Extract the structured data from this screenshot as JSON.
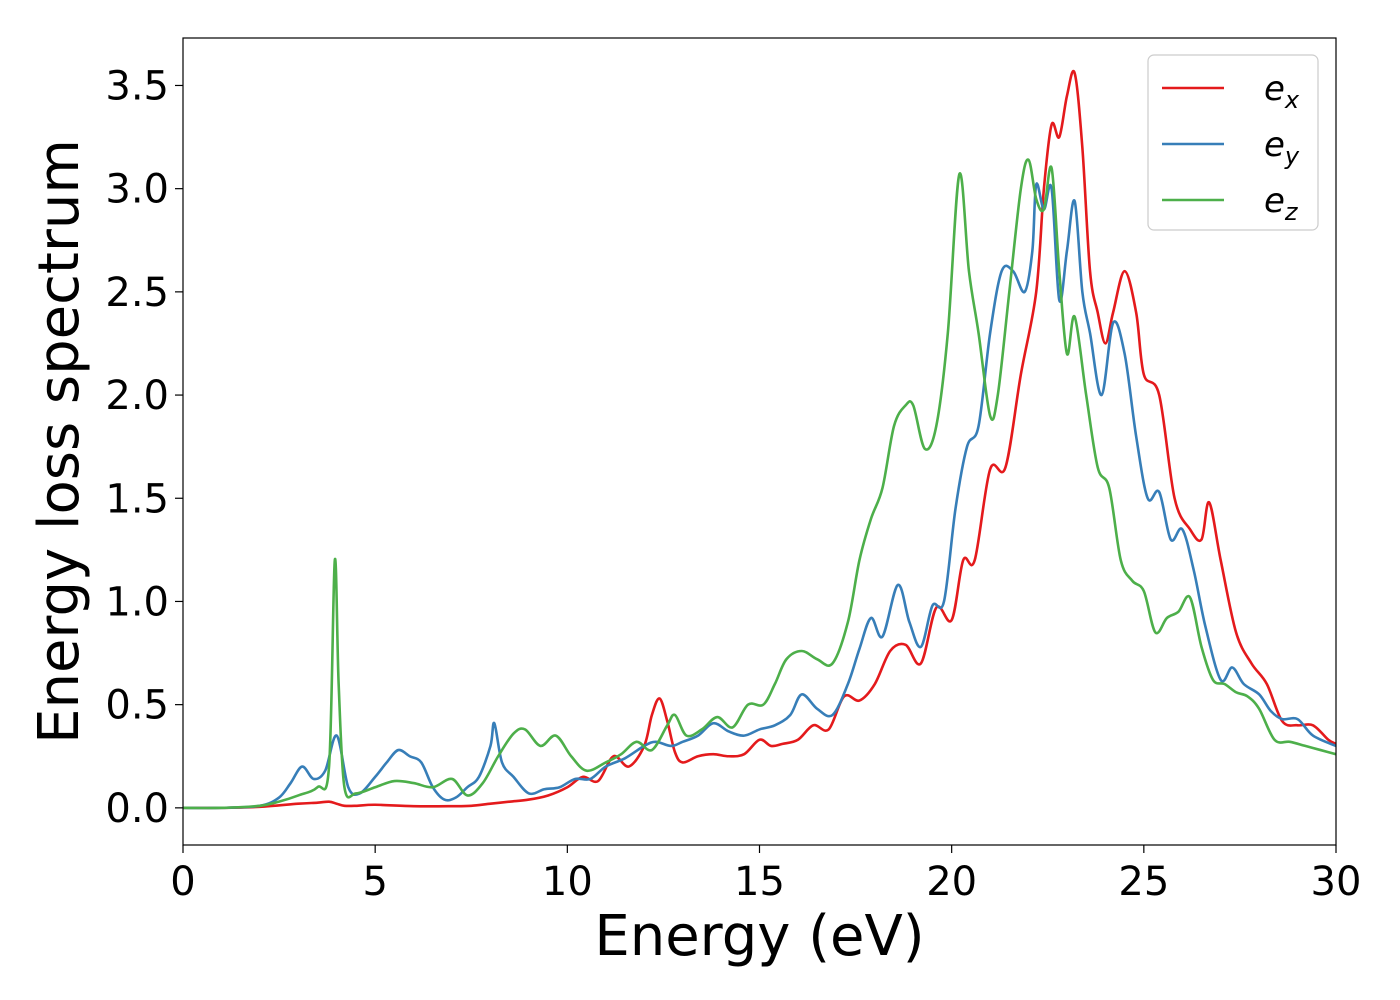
{
  "chart_data": {
    "type": "line",
    "title": "",
    "xlabel": "Energy (eV)",
    "ylabel": "Energy loss spectrum",
    "xlim": [
      0,
      30
    ],
    "ylim": [
      -0.18,
      3.73
    ],
    "xticks": [
      0,
      5,
      10,
      15,
      20,
      25,
      30
    ],
    "yticks": [
      0.0,
      0.5,
      1.0,
      1.5,
      2.0,
      2.5,
      3.0,
      3.5
    ],
    "xtick_labels": [
      "0",
      "5",
      "10",
      "15",
      "20",
      "25",
      "30"
    ],
    "ytick_labels": [
      "0.0",
      "0.5",
      "1.0",
      "1.5",
      "2.0",
      "2.5",
      "3.0",
      "3.5"
    ],
    "grid": false,
    "legend_position": "top-right",
    "series": [
      {
        "name": "e_x",
        "label_base": "e",
        "label_sub": "x",
        "color": "#e41a1c",
        "x": [
          0,
          1,
          2,
          3,
          3.5,
          3.8,
          4,
          4.2,
          4.5,
          5,
          6,
          7,
          7.5,
          8,
          8.5,
          9,
          9.5,
          10,
          10.4,
          10.8,
          11.2,
          11.6,
          12,
          12.2,
          12.4,
          12.6,
          12.8,
          13,
          13.4,
          13.8,
          14.2,
          14.6,
          15,
          15.3,
          15.6,
          16,
          16.4,
          16.8,
          17.2,
          17.6,
          18,
          18.4,
          18.8,
          19.2,
          19.6,
          20,
          20.3,
          20.6,
          21,
          21.4,
          21.8,
          22.2,
          22.4,
          22.6,
          22.8,
          23,
          23.2,
          23.4,
          23.6,
          23.8,
          24,
          24.2,
          24.5,
          24.8,
          25,
          25.4,
          25.8,
          26.2,
          26.5,
          26.7,
          27,
          27.4,
          27.8,
          28.2,
          28.6,
          29,
          29.4,
          29.8,
          30
        ],
        "y": [
          0,
          0,
          0.005,
          0.02,
          0.025,
          0.03,
          0.02,
          0.01,
          0.01,
          0.015,
          0.008,
          0.008,
          0.01,
          0.02,
          0.03,
          0.04,
          0.06,
          0.1,
          0.15,
          0.13,
          0.25,
          0.2,
          0.3,
          0.45,
          0.53,
          0.42,
          0.27,
          0.22,
          0.25,
          0.26,
          0.25,
          0.26,
          0.33,
          0.3,
          0.31,
          0.33,
          0.4,
          0.38,
          0.54,
          0.52,
          0.6,
          0.76,
          0.79,
          0.7,
          0.97,
          0.91,
          1.2,
          1.2,
          1.64,
          1.65,
          2.1,
          2.5,
          3.0,
          3.31,
          3.25,
          3.45,
          3.56,
          3.2,
          2.6,
          2.4,
          2.25,
          2.4,
          2.6,
          2.4,
          2.1,
          2.0,
          1.5,
          1.35,
          1.3,
          1.48,
          1.2,
          0.85,
          0.7,
          0.6,
          0.42,
          0.4,
          0.4,
          0.33,
          0.31
        ]
      },
      {
        "name": "e_y",
        "label_base": "e",
        "label_sub": "y",
        "color": "#377eb8",
        "x": [
          0,
          1,
          2,
          2.5,
          2.8,
          3.1,
          3.4,
          3.7,
          4,
          4.3,
          4.6,
          5,
          5.3,
          5.6,
          5.9,
          6.2,
          6.5,
          6.8,
          7.1,
          7.4,
          7.7,
          8,
          8.1,
          8.3,
          8.6,
          9,
          9.4,
          9.8,
          10.2,
          10.6,
          11,
          11.5,
          12,
          12.3,
          12.7,
          13,
          13.4,
          13.8,
          14.2,
          14.6,
          15,
          15.4,
          15.8,
          16.1,
          16.5,
          16.9,
          17.3,
          17.6,
          17.9,
          18.2,
          18.6,
          18.9,
          19.2,
          19.5,
          19.8,
          20.1,
          20.4,
          20.7,
          21,
          21.3,
          21.6,
          21.9,
          22.1,
          22.2,
          22.4,
          22.6,
          22.8,
          23,
          23.2,
          23.4,
          23.6,
          23.9,
          24.2,
          24.5,
          24.8,
          25.1,
          25.4,
          25.7,
          26,
          26.3,
          26.6,
          27,
          27.3,
          27.6,
          28,
          28.3,
          28.6,
          29,
          29.4,
          30
        ],
        "y": [
          0,
          0,
          0.01,
          0.05,
          0.12,
          0.2,
          0.14,
          0.18,
          0.35,
          0.1,
          0.07,
          0.15,
          0.22,
          0.28,
          0.25,
          0.22,
          0.1,
          0.04,
          0.05,
          0.1,
          0.15,
          0.3,
          0.41,
          0.22,
          0.15,
          0.07,
          0.09,
          0.1,
          0.14,
          0.14,
          0.2,
          0.24,
          0.3,
          0.32,
          0.3,
          0.32,
          0.35,
          0.41,
          0.37,
          0.35,
          0.38,
          0.4,
          0.45,
          0.55,
          0.48,
          0.45,
          0.6,
          0.77,
          0.92,
          0.83,
          1.08,
          0.9,
          0.78,
          0.98,
          1.0,
          1.45,
          1.75,
          1.85,
          2.3,
          2.6,
          2.6,
          2.5,
          2.7,
          3.02,
          2.9,
          3.0,
          2.46,
          2.7,
          2.94,
          2.5,
          2.3,
          2.0,
          2.35,
          2.2,
          1.8,
          1.5,
          1.53,
          1.3,
          1.35,
          1.15,
          0.88,
          0.62,
          0.68,
          0.6,
          0.55,
          0.47,
          0.43,
          0.43,
          0.35,
          0.3
        ]
      },
      {
        "name": "e_z",
        "label_base": "e",
        "label_sub": "z",
        "color": "#4daf4a",
        "x": [
          0,
          1,
          2,
          2.5,
          3,
          3.5,
          3.8,
          3.95,
          4.05,
          4.2,
          4.5,
          5,
          5.5,
          6,
          6.5,
          7,
          7.4,
          7.8,
          8.2,
          8.6,
          8.9,
          9.3,
          9.7,
          10.1,
          10.5,
          11,
          11.4,
          11.8,
          12.2,
          12.6,
          12.8,
          13.1,
          13.5,
          13.9,
          14.3,
          14.7,
          15.1,
          15.4,
          15.7,
          16.1,
          16.5,
          16.9,
          17.3,
          17.6,
          17.9,
          18.2,
          18.5,
          18.8,
          19,
          19.3,
          19.6,
          19.9,
          20.2,
          20.45,
          20.7,
          21,
          21.2,
          21.5,
          21.8,
          22,
          22.2,
          22.4,
          22.6,
          22.8,
          23,
          23.2,
          23.5,
          23.8,
          24.1,
          24.4,
          24.7,
          25,
          25.3,
          25.6,
          25.9,
          26.2,
          26.5,
          26.8,
          27.1,
          27.4,
          27.7,
          28,
          28.4,
          28.8,
          29.2,
          29.6,
          30
        ],
        "y": [
          0,
          0,
          0.01,
          0.03,
          0.06,
          0.1,
          0.2,
          1.2,
          0.6,
          0.1,
          0.07,
          0.1,
          0.13,
          0.12,
          0.1,
          0.14,
          0.06,
          0.12,
          0.25,
          0.36,
          0.38,
          0.3,
          0.35,
          0.25,
          0.18,
          0.22,
          0.26,
          0.32,
          0.28,
          0.4,
          0.45,
          0.35,
          0.38,
          0.44,
          0.39,
          0.5,
          0.5,
          0.6,
          0.72,
          0.76,
          0.72,
          0.7,
          0.9,
          1.2,
          1.4,
          1.55,
          1.85,
          1.95,
          1.95,
          1.74,
          1.85,
          2.3,
          3.07,
          2.6,
          2.3,
          1.9,
          2.0,
          2.5,
          3.0,
          3.14,
          2.95,
          2.9,
          3.1,
          2.6,
          2.2,
          2.38,
          2.0,
          1.65,
          1.55,
          1.2,
          1.1,
          1.05,
          0.85,
          0.92,
          0.95,
          1.02,
          0.78,
          0.62,
          0.6,
          0.56,
          0.54,
          0.48,
          0.33,
          0.32,
          0.3,
          0.28,
          0.26
        ]
      }
    ]
  }
}
